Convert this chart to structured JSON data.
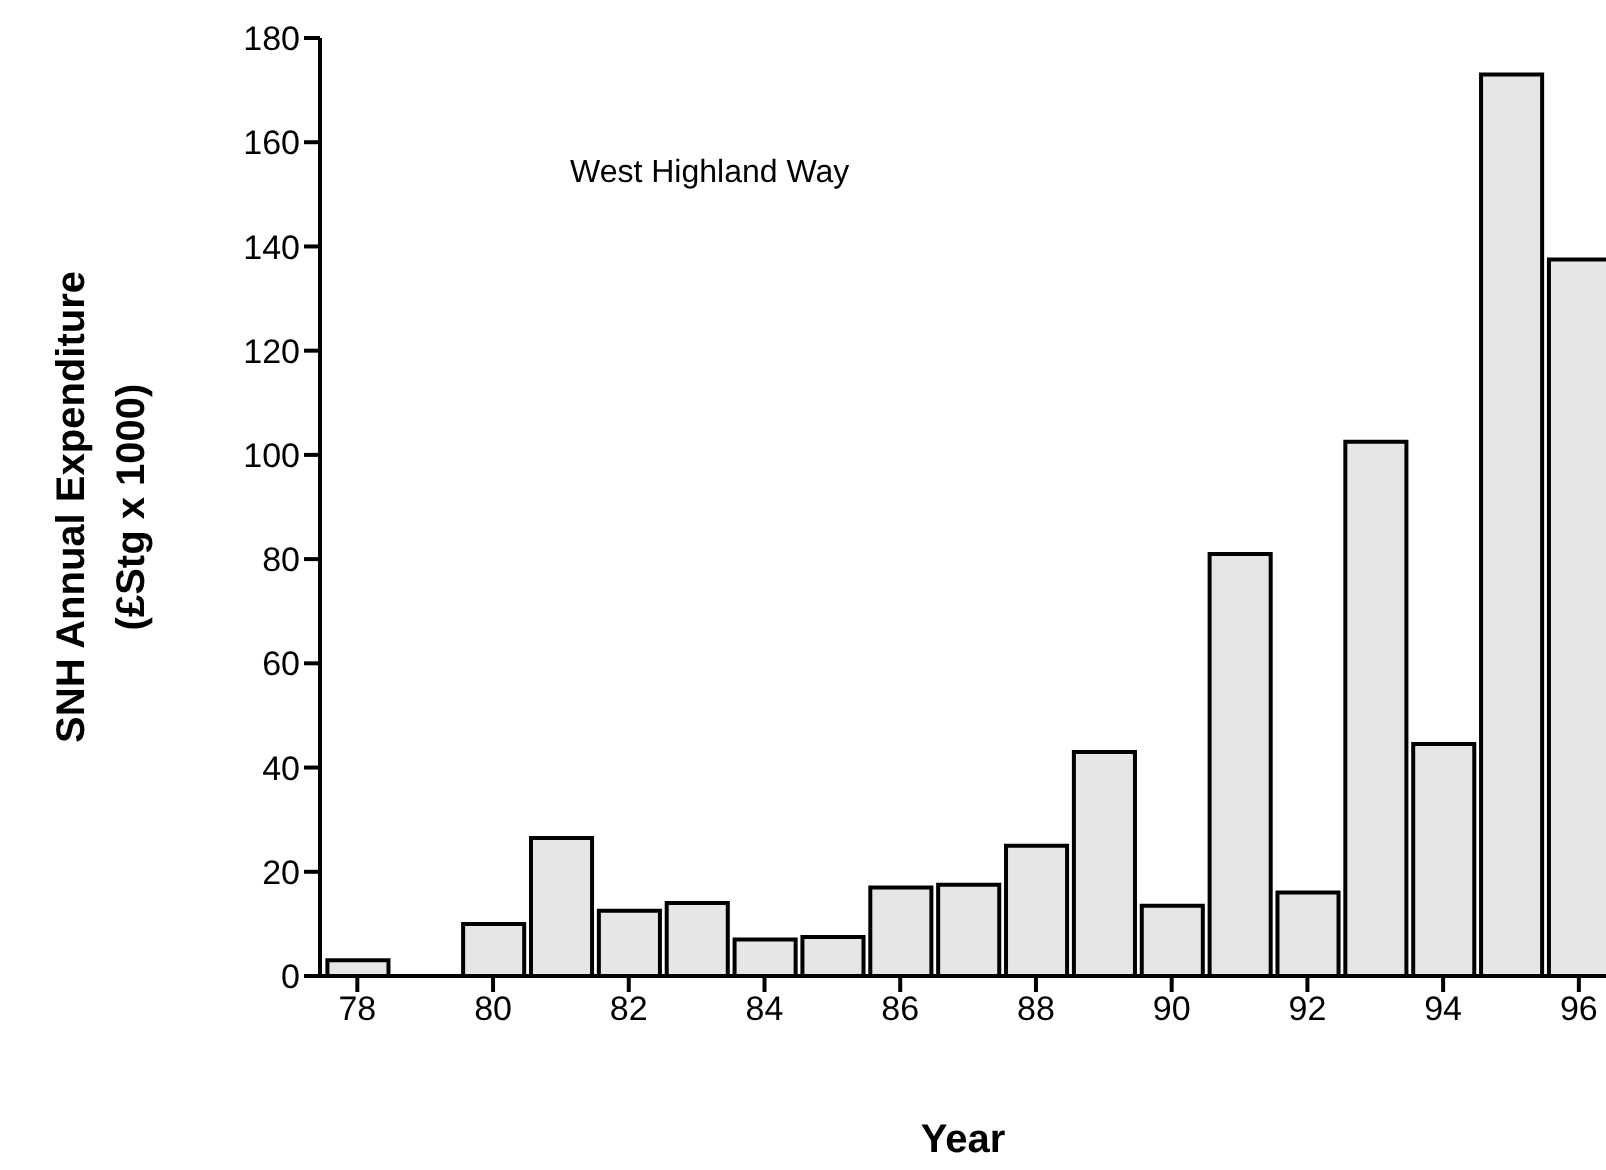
{
  "chart_data": {
    "type": "bar",
    "xlabel": "Year",
    "ylabel": "SNH Annual Expenditure\n(£Stg x 1000)",
    "annotations": [
      "West Highland Way"
    ],
    "x": [
      78,
      80,
      81,
      82,
      83,
      84,
      85,
      86,
      87,
      88,
      89,
      90,
      91,
      92,
      93,
      94,
      95,
      96
    ],
    "values": [
      3,
      10,
      26.5,
      12.5,
      14,
      7,
      7.5,
      17,
      17.5,
      25,
      43,
      13.5,
      81,
      16,
      102.5,
      44.5,
      173,
      137.5
    ],
    "color": "#e6e6e6",
    "xlim": [
      77.45,
      96.4
    ],
    "xticks": [
      78,
      80,
      82,
      84,
      86,
      88,
      90,
      92,
      94,
      96
    ],
    "ylim": [
      0,
      180
    ],
    "yticks": [
      0,
      20,
      40,
      60,
      80,
      100,
      120,
      140,
      160,
      180
    ],
    "grid": false,
    "legend": false
  }
}
